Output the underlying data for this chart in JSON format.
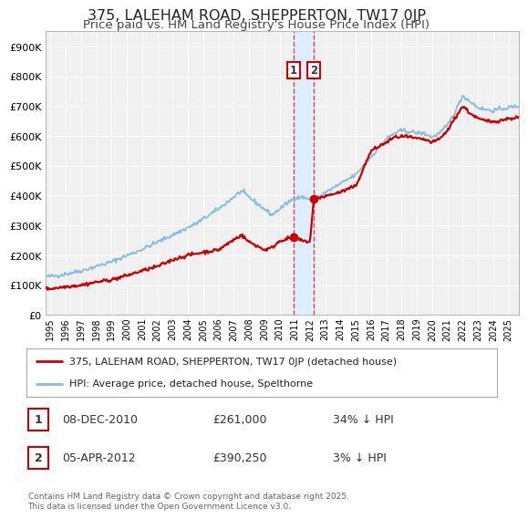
{
  "title": "375, LALEHAM ROAD, SHEPPERTON, TW17 0JP",
  "subtitle": "Price paid vs. HM Land Registry's House Price Index (HPI)",
  "title_fontsize": 11.5,
  "subtitle_fontsize": 9.5,
  "background_color": "#ffffff",
  "plot_bg_color": "#f0f0f0",
  "grid_color": "#ffffff",
  "ylim": [
    0,
    950000
  ],
  "xlim_start": 1994.7,
  "xlim_end": 2025.7,
  "ytick_labels": [
    "£0",
    "£100K",
    "£200K",
    "£300K",
    "£400K",
    "£500K",
    "£600K",
    "£700K",
    "£800K",
    "£900K"
  ],
  "ytick_values": [
    0,
    100000,
    200000,
    300000,
    400000,
    500000,
    600000,
    700000,
    800000,
    900000
  ],
  "xtick_years": [
    1995,
    1996,
    1997,
    1998,
    1999,
    2000,
    2001,
    2002,
    2003,
    2004,
    2005,
    2006,
    2007,
    2008,
    2009,
    2010,
    2011,
    2012,
    2013,
    2014,
    2015,
    2016,
    2017,
    2018,
    2019,
    2020,
    2021,
    2022,
    2023,
    2024,
    2025
  ],
  "sale1_date": 2010.917,
  "sale1_price": 261000,
  "sale1_label": "1",
  "sale1_date_str": "08-DEC-2010",
  "sale1_price_str": "£261,000",
  "sale1_hpi_str": "34% ↓ HPI",
  "sale2_date": 2012.25,
  "sale2_price": 390250,
  "sale2_label": "2",
  "sale2_date_str": "05-APR-2012",
  "sale2_price_str": "£390,250",
  "sale2_hpi_str": "3% ↓ HPI",
  "vspan_color": "#ddeeff",
  "vline_color": "#dd4444",
  "vline_style": "--",
  "marker_color": "#cc0000",
  "hpi_color": "#88bbdd",
  "price_color": "#cc0000",
  "legend1_label": "375, LALEHAM ROAD, SHEPPERTON, TW17 0JP (detached house)",
  "legend2_label": "HPI: Average price, detached house, Spelthorne",
  "footer": "Contains HM Land Registry data © Crown copyright and database right 2025.\nThis data is licensed under the Open Government Licence v3.0."
}
